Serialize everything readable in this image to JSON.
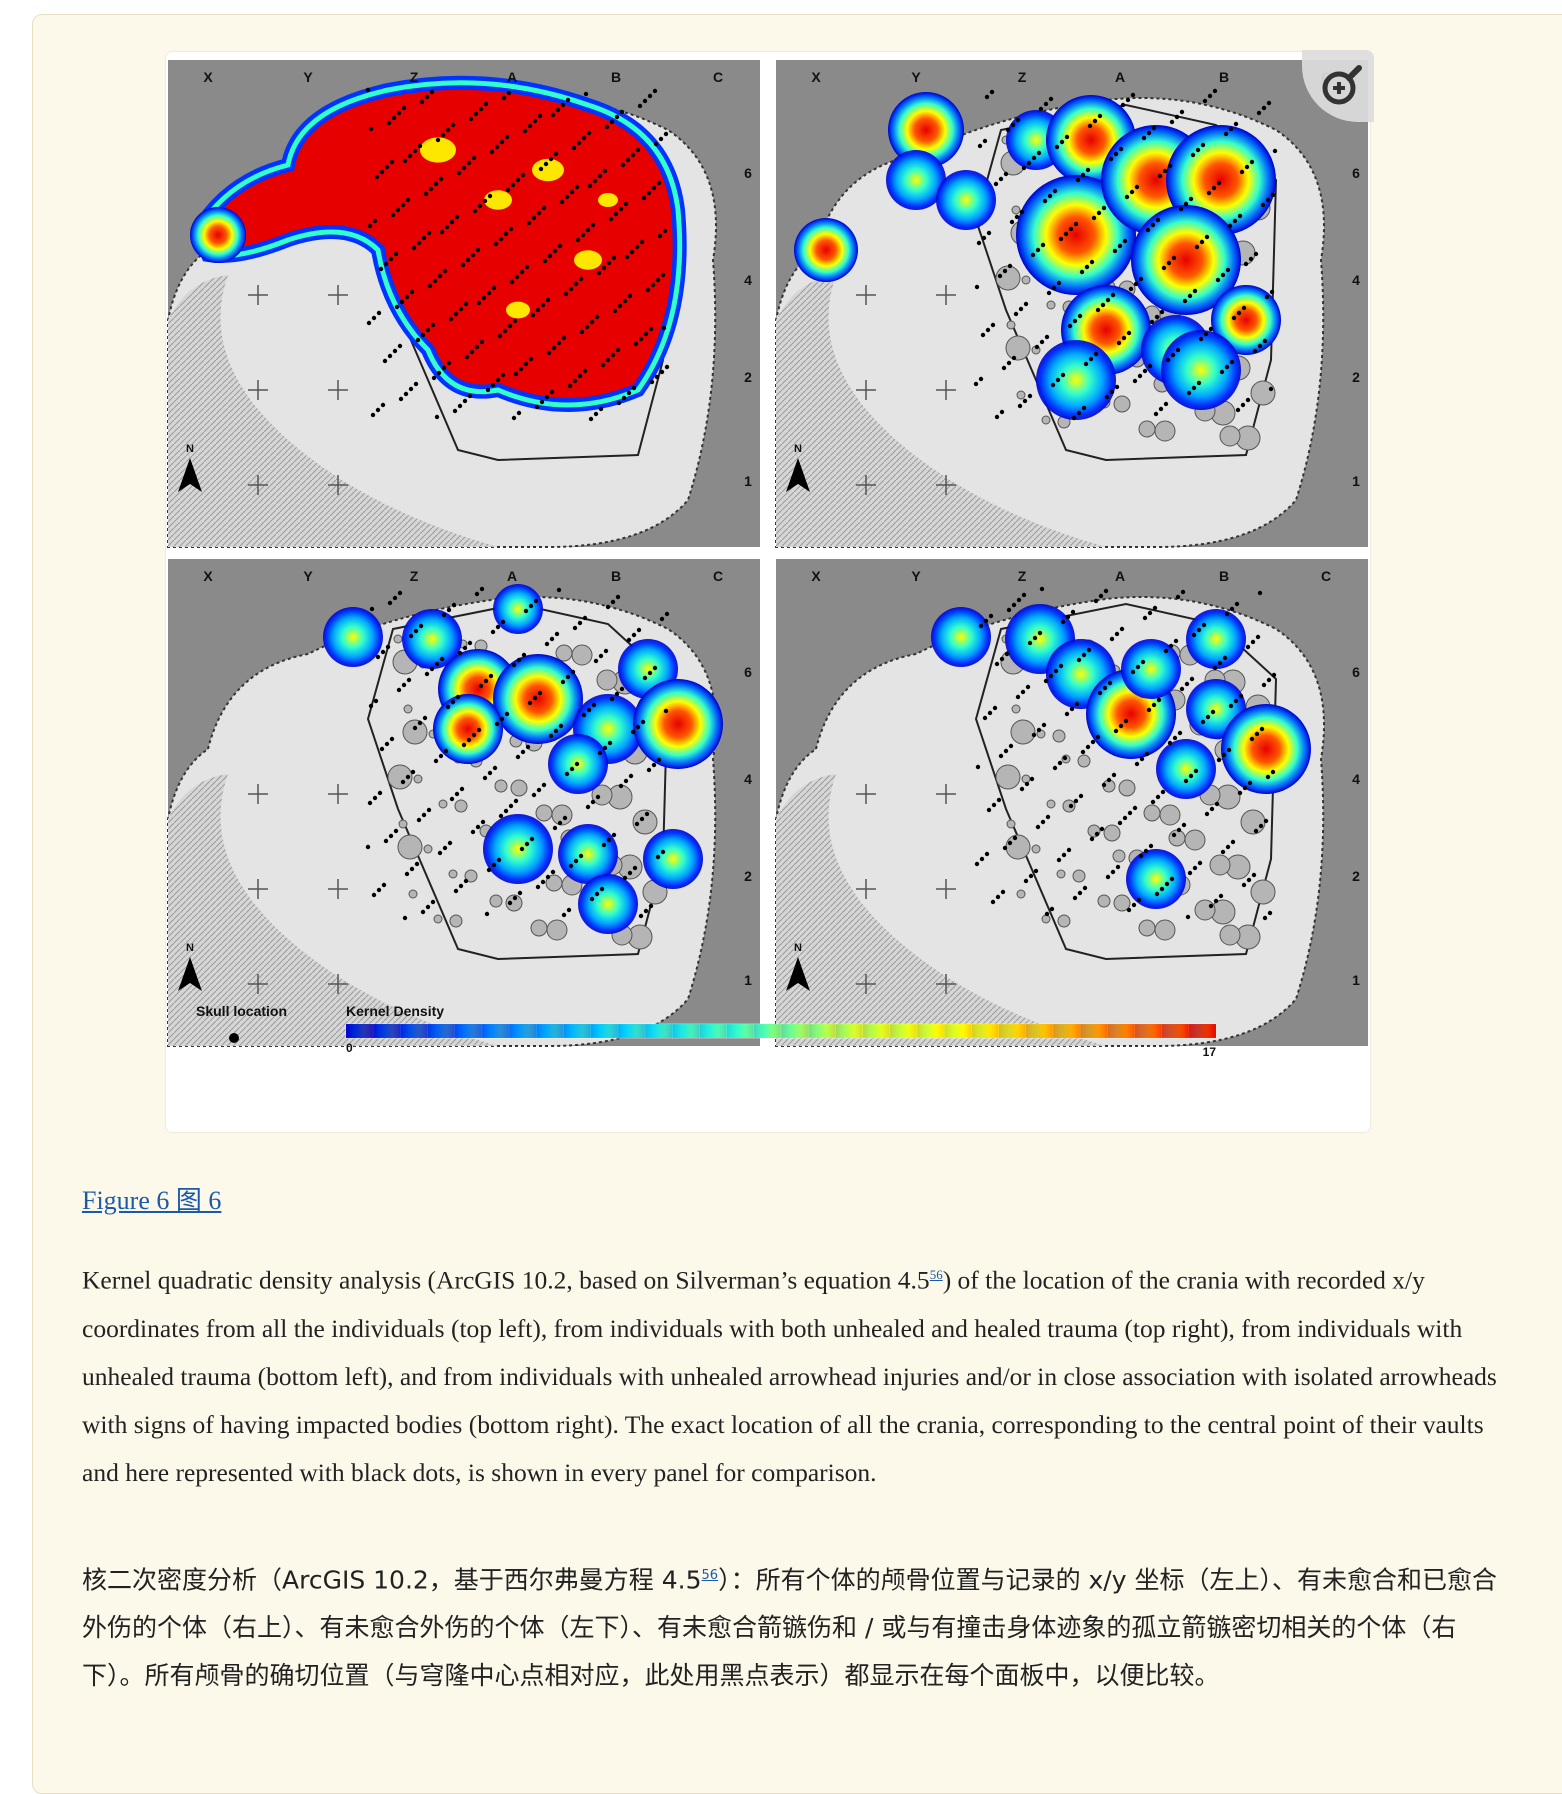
{
  "figure": {
    "column_labels": [
      "X",
      "Y",
      "Z",
      "A",
      "B",
      "C"
    ],
    "row_labels": [
      "6",
      "4",
      "2",
      "1"
    ],
    "north_label": "N",
    "legend": {
      "skull_label": "Skull location",
      "density_label": "Kernel Density",
      "scale_min": "0",
      "scale_max": "17",
      "scale_colors": [
        "#0000cc",
        "#0066ff",
        "#00ccff",
        "#33ffcc",
        "#ccff33",
        "#ffff00",
        "#ffaa00",
        "#ff5500",
        "#e60000"
      ]
    },
    "zoom_icon": "zoom-in-icon"
  },
  "caption": {
    "link_text": "Figure 6 图 6",
    "ref_number": "56",
    "en_before": "Kernel quadratic density analysis (ArcGIS 10.2, based on Silverman’s equation 4.5",
    "en_after": ") of the location of the crania with recorded x/y coordinates from all the individuals (top left), from individuals with both unhealed and healed trauma (top right), from individuals with unhealed trauma (bottom left), and from individuals with unhealed arrowhead injuries and/or in close association with isolated arrowheads with signs of having impacted bodies (bottom right). The exact location of all the crania, corresponding to the central point of their vaults and here represented with black dots, is shown in every panel for comparison.",
    "zh_before": "核二次密度分析（ArcGIS 10.2，基于西尔弗曼方程 4.5",
    "zh_after": "）：所有个体的颅骨位置与记录的 x/y 坐标（左上）、有未愈合和已愈合外伤的个体（右上）、有未愈合外伤的个体（左下）、有未愈合箭镞伤和 / 或与有撞击身体迹象的孤立箭镞密切相关的个体（右下）。所有颅骨的确切位置（与穹隆中心点相对应，此处用黑点表示）都显示在每个面板中，以便比较。"
  }
}
